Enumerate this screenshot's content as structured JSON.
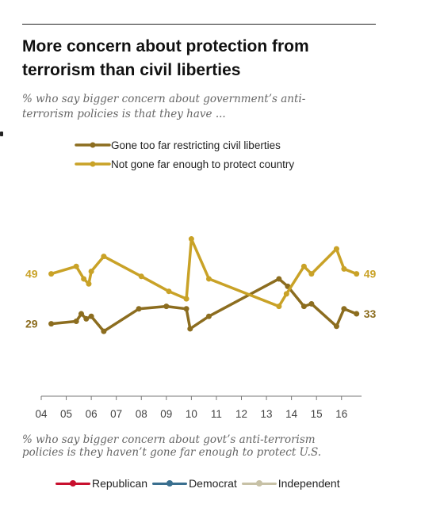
{
  "header": {
    "title_line1": "More concern about protection from",
    "title_line2": "terrorism than civil liberties",
    "subtitle_line1": "% who say bigger concern about government’s anti-",
    "subtitle_line2": "terrorism policies is that they have ..."
  },
  "footnote": {
    "line1": "% who say bigger concern about govt’s anti-terrorism",
    "line2": "policies is they haven’t gone far enough to protect U.S."
  },
  "bottom_legend": [
    {
      "label": "Republican",
      "color": "#c8102e"
    },
    {
      "label": "Democrat",
      "color": "#3a6f8f"
    },
    {
      "label": "Independent",
      "color": "#c7c1a6"
    }
  ],
  "chart_data": {
    "type": "line",
    "x_tick_labels": [
      "04",
      "05",
      "06",
      "07",
      "08",
      "09",
      "10",
      "11",
      "12",
      "13",
      "14",
      "15",
      "16"
    ],
    "xlim": [
      2004,
      2016.8
    ],
    "ylim": [
      0,
      80
    ],
    "legend_position": "top-center",
    "series": [
      {
        "name": "Gone too far restricting civil liberties",
        "color": "#8c6d1f",
        "points": [
          {
            "x": 2004.4,
            "y": 29
          },
          {
            "x": 2005.4,
            "y": 30
          },
          {
            "x": 2005.6,
            "y": 33
          },
          {
            "x": 2005.8,
            "y": 31
          },
          {
            "x": 2006.0,
            "y": 32
          },
          {
            "x": 2006.5,
            "y": 26
          },
          {
            "x": 2007.9,
            "y": 35
          },
          {
            "x": 2009.0,
            "y": 36
          },
          {
            "x": 2009.8,
            "y": 35
          },
          {
            "x": 2009.95,
            "y": 27
          },
          {
            "x": 2010.7,
            "y": 32
          },
          {
            "x": 2013.5,
            "y": 47
          },
          {
            "x": 2013.85,
            "y": 44
          },
          {
            "x": 2014.5,
            "y": 36
          },
          {
            "x": 2014.8,
            "y": 37
          },
          {
            "x": 2015.8,
            "y": 28
          },
          {
            "x": 2016.1,
            "y": 35
          },
          {
            "x": 2016.6,
            "y": 33
          }
        ],
        "end_labels": {
          "first": "29",
          "last": "33"
        }
      },
      {
        "name": "Not gone far enough to protect country",
        "color": "#c9a227",
        "points": [
          {
            "x": 2004.4,
            "y": 49
          },
          {
            "x": 2005.4,
            "y": 52
          },
          {
            "x": 2005.7,
            "y": 47
          },
          {
            "x": 2005.9,
            "y": 45
          },
          {
            "x": 2006.0,
            "y": 50
          },
          {
            "x": 2006.5,
            "y": 56
          },
          {
            "x": 2008.0,
            "y": 48
          },
          {
            "x": 2009.1,
            "y": 42
          },
          {
            "x": 2009.8,
            "y": 39
          },
          {
            "x": 2010.0,
            "y": 63
          },
          {
            "x": 2010.7,
            "y": 47
          },
          {
            "x": 2013.5,
            "y": 36
          },
          {
            "x": 2013.8,
            "y": 41
          },
          {
            "x": 2014.5,
            "y": 52
          },
          {
            "x": 2014.8,
            "y": 49
          },
          {
            "x": 2015.8,
            "y": 59
          },
          {
            "x": 2016.1,
            "y": 51
          },
          {
            "x": 2016.6,
            "y": 49
          }
        ],
        "end_labels": {
          "first": "49",
          "last": "49"
        }
      }
    ]
  }
}
